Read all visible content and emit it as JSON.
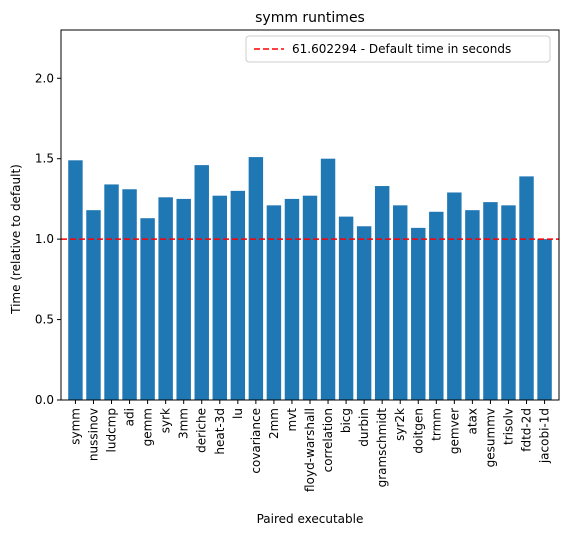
{
  "chart_data": {
    "type": "bar",
    "title": "symm runtimes",
    "xlabel": "Paired executable",
    "ylabel": "Time (relative to default)",
    "ylim": [
      0,
      2.3
    ],
    "yticks": [
      0.0,
      0.5,
      1.0,
      1.5,
      2.0
    ],
    "ytick_labels": [
      "0.0",
      "0.5",
      "1.0",
      "1.5",
      "2.0"
    ],
    "categories": [
      "symm",
      "nussinov",
      "ludcmp",
      "adi",
      "gemm",
      "syrk",
      "3mm",
      "deriche",
      "heat-3d",
      "lu",
      "covariance",
      "2mm",
      "mvt",
      "floyd-warshall",
      "correlation",
      "bicg",
      "durbin",
      "gramschmidt",
      "syr2k",
      "doitgen",
      "trmm",
      "gemver",
      "atax",
      "gesummv",
      "trisolv",
      "fdtd-2d",
      "jacobi-1d"
    ],
    "values": [
      1.49,
      1.18,
      1.34,
      1.31,
      1.13,
      1.26,
      1.25,
      1.46,
      1.27,
      1.3,
      1.51,
      1.21,
      1.25,
      1.27,
      1.5,
      1.14,
      1.08,
      1.33,
      1.21,
      1.07,
      1.17,
      1.29,
      1.18,
      1.23,
      1.21,
      1.39,
      1.0
    ],
    "bar_color": "#1f77b4",
    "reference_line": {
      "y": 1.0,
      "color": "#ff0000",
      "style": "dashed",
      "label": "61.602294 - Default time in seconds"
    },
    "legend_placement": "top-right",
    "grid": false
  }
}
